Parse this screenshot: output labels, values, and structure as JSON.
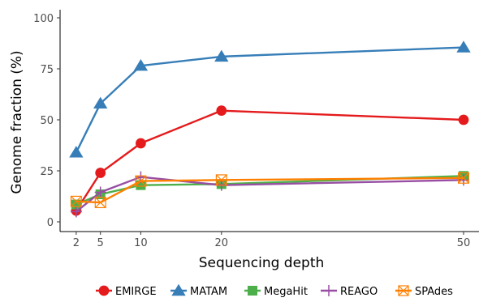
{
  "chart_data": {
    "type": "line",
    "xlabel": "Sequencing depth",
    "ylabel": "Genome fraction (%)",
    "x": [
      2,
      5,
      10,
      20,
      50
    ],
    "xticks": [
      "2",
      "5",
      "10",
      "20",
      "50"
    ],
    "xlim": [
      0,
      50
    ],
    "ylim": [
      0,
      100
    ],
    "yticks": [
      "0",
      "25",
      "50",
      "75",
      "100"
    ],
    "grid": false,
    "legend_position": "bottom",
    "series": [
      {
        "name": "EMIRGE",
        "color": "#e41a1c",
        "marker": "circle",
        "values": [
          5.5,
          24,
          38.5,
          54.5,
          50
        ]
      },
      {
        "name": "MATAM",
        "color": "#377eb8",
        "marker": "triangle",
        "values": [
          34,
          58,
          76.5,
          81,
          85.5
        ]
      },
      {
        "name": "MegaHit",
        "color": "#4daf4a",
        "marker": "square",
        "values": [
          8.5,
          13.5,
          18,
          18.5,
          22.5
        ]
      },
      {
        "name": "REAGO",
        "color": "#984ea3",
        "marker": "plus",
        "values": [
          5,
          14.5,
          22,
          18,
          20.5
        ]
      },
      {
        "name": "SPAdes",
        "color": "#ff7f00",
        "marker": "boxed-x",
        "values": [
          10,
          9.5,
          20,
          20.5,
          21.5
        ]
      }
    ]
  }
}
